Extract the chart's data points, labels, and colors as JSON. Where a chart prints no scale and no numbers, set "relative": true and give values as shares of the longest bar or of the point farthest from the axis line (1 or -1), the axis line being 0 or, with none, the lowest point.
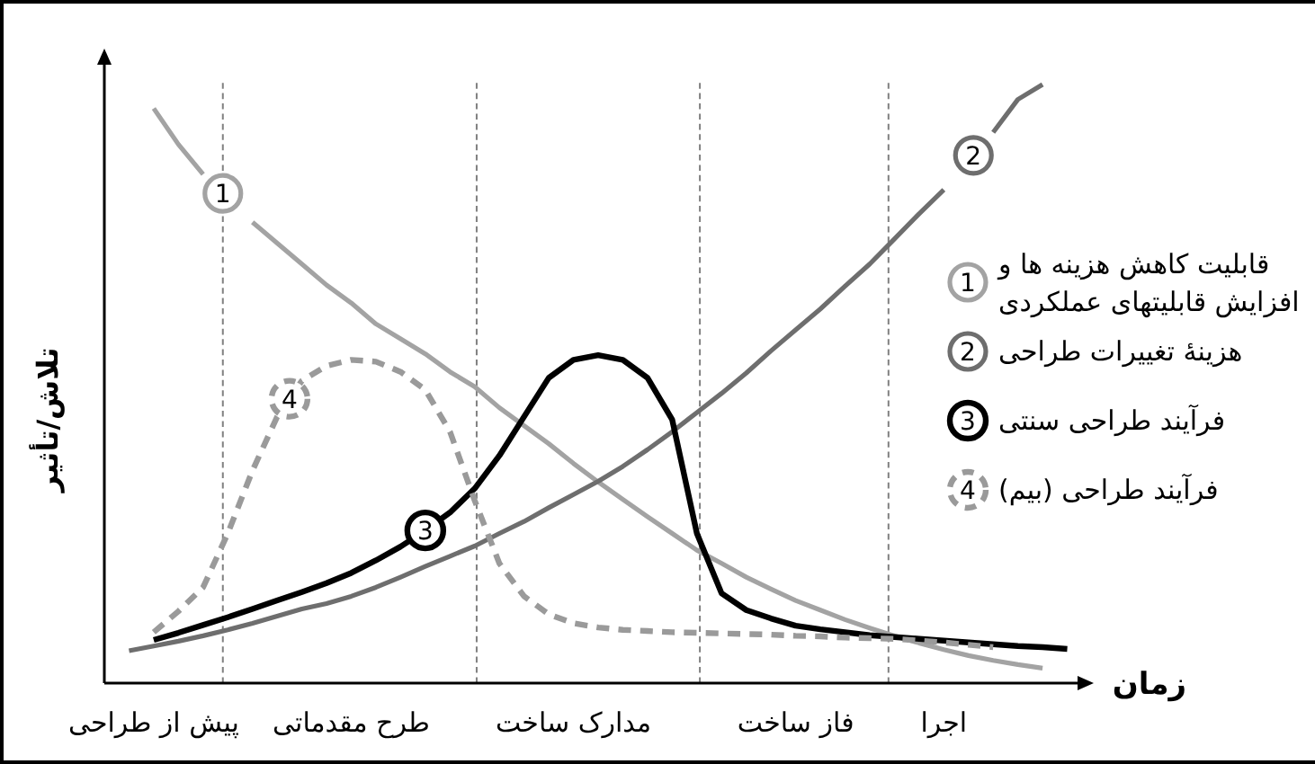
{
  "chart_data": {
    "type": "line",
    "relative": true,
    "xlabel": "زمان",
    "ylabel": "تلاش/تأثیر",
    "categories": [
      null,
      null,
      "پیش از طراحی",
      null,
      null,
      null,
      null,
      null,
      null,
      null,
      "طرح مقدماتی",
      null,
      null,
      null,
      null,
      null,
      null,
      null,
      null,
      "مدارک ساخت",
      null,
      null,
      null,
      null,
      null,
      null,
      null,
      null,
      "فاز ساخت",
      null,
      null,
      null,
      null,
      null,
      "اجرا",
      null,
      null,
      null,
      null,
      null,
      null
    ],
    "series": [
      {
        "name": "قابلیت کاهش هزینه ها و\nافزایش قابلیتهای عملکردی",
        "color": "#a3a3a3",
        "line_style": "solid",
        "values": [
          null,
          null,
          0.96,
          0.9,
          0.85,
          null,
          0.77,
          0.735,
          0.7,
          0.665,
          0.635,
          0.6,
          0.575,
          0.55,
          0.52,
          0.495,
          0.46,
          0.43,
          0.4,
          0.367,
          0.336,
          0.307,
          0.278,
          0.25,
          0.222,
          0.2,
          0.177,
          0.157,
          0.138,
          0.122,
          0.106,
          0.092,
          0.079,
          0.067,
          0.056,
          0.046,
          0.038,
          0.031,
          0.025,
          null,
          null
        ]
      },
      {
        "name": "هزینهٔ تغییرات طراحی",
        "color": "#6e6e6e",
        "line_style": "solid",
        "values": [
          null,
          0.054,
          0.062,
          0.07,
          0.079,
          0.089,
          0.1,
          0.112,
          0.124,
          0.133,
          0.145,
          0.16,
          0.177,
          0.195,
          0.212,
          0.229,
          0.25,
          0.27,
          0.293,
          0.315,
          0.337,
          0.362,
          0.39,
          0.42,
          0.452,
          0.484,
          0.518,
          0.555,
          0.59,
          0.625,
          0.663,
          0.7,
          0.742,
          0.784,
          0.824,
          null,
          0.92,
          0.975,
          1.0,
          null,
          null
        ]
      },
      {
        "name": "فرآیند طراحی سنتی",
        "color": "#000000",
        "line_style": "solid",
        "values": [
          null,
          null,
          0.072,
          0.084,
          0.097,
          0.11,
          0.124,
          0.138,
          0.152,
          0.167,
          0.184,
          0.205,
          0.228,
          0.255,
          0.285,
          0.325,
          0.38,
          0.445,
          0.51,
          0.54,
          0.548,
          0.54,
          0.51,
          0.44,
          0.25,
          0.15,
          0.122,
          0.108,
          0.096,
          0.09,
          0.085,
          0.08,
          0.077,
          0.074,
          0.071,
          0.068,
          0.065,
          0.062,
          0.06,
          0.057,
          null
        ]
      },
      {
        "name": "فرآیند طراحی (بیم)",
        "color": "#9a9a9a",
        "line_style": "dashed",
        "values": [
          null,
          null,
          0.085,
          0.12,
          0.16,
          0.25,
          0.355,
          0.445,
          0.505,
          0.53,
          0.54,
          0.537,
          0.52,
          0.49,
          0.42,
          0.305,
          0.2,
          0.145,
          0.115,
          0.1,
          0.093,
          0.089,
          0.087,
          0.085,
          0.084,
          0.083,
          0.082,
          0.081,
          0.079,
          0.078,
          0.076,
          0.075,
          0.074,
          0.071,
          0.068,
          0.064,
          0.06,
          null,
          null,
          null,
          null
        ]
      }
    ],
    "annotations": [
      "1",
      "2",
      "3",
      "4"
    ],
    "legend": "right",
    "marker": "none"
  }
}
